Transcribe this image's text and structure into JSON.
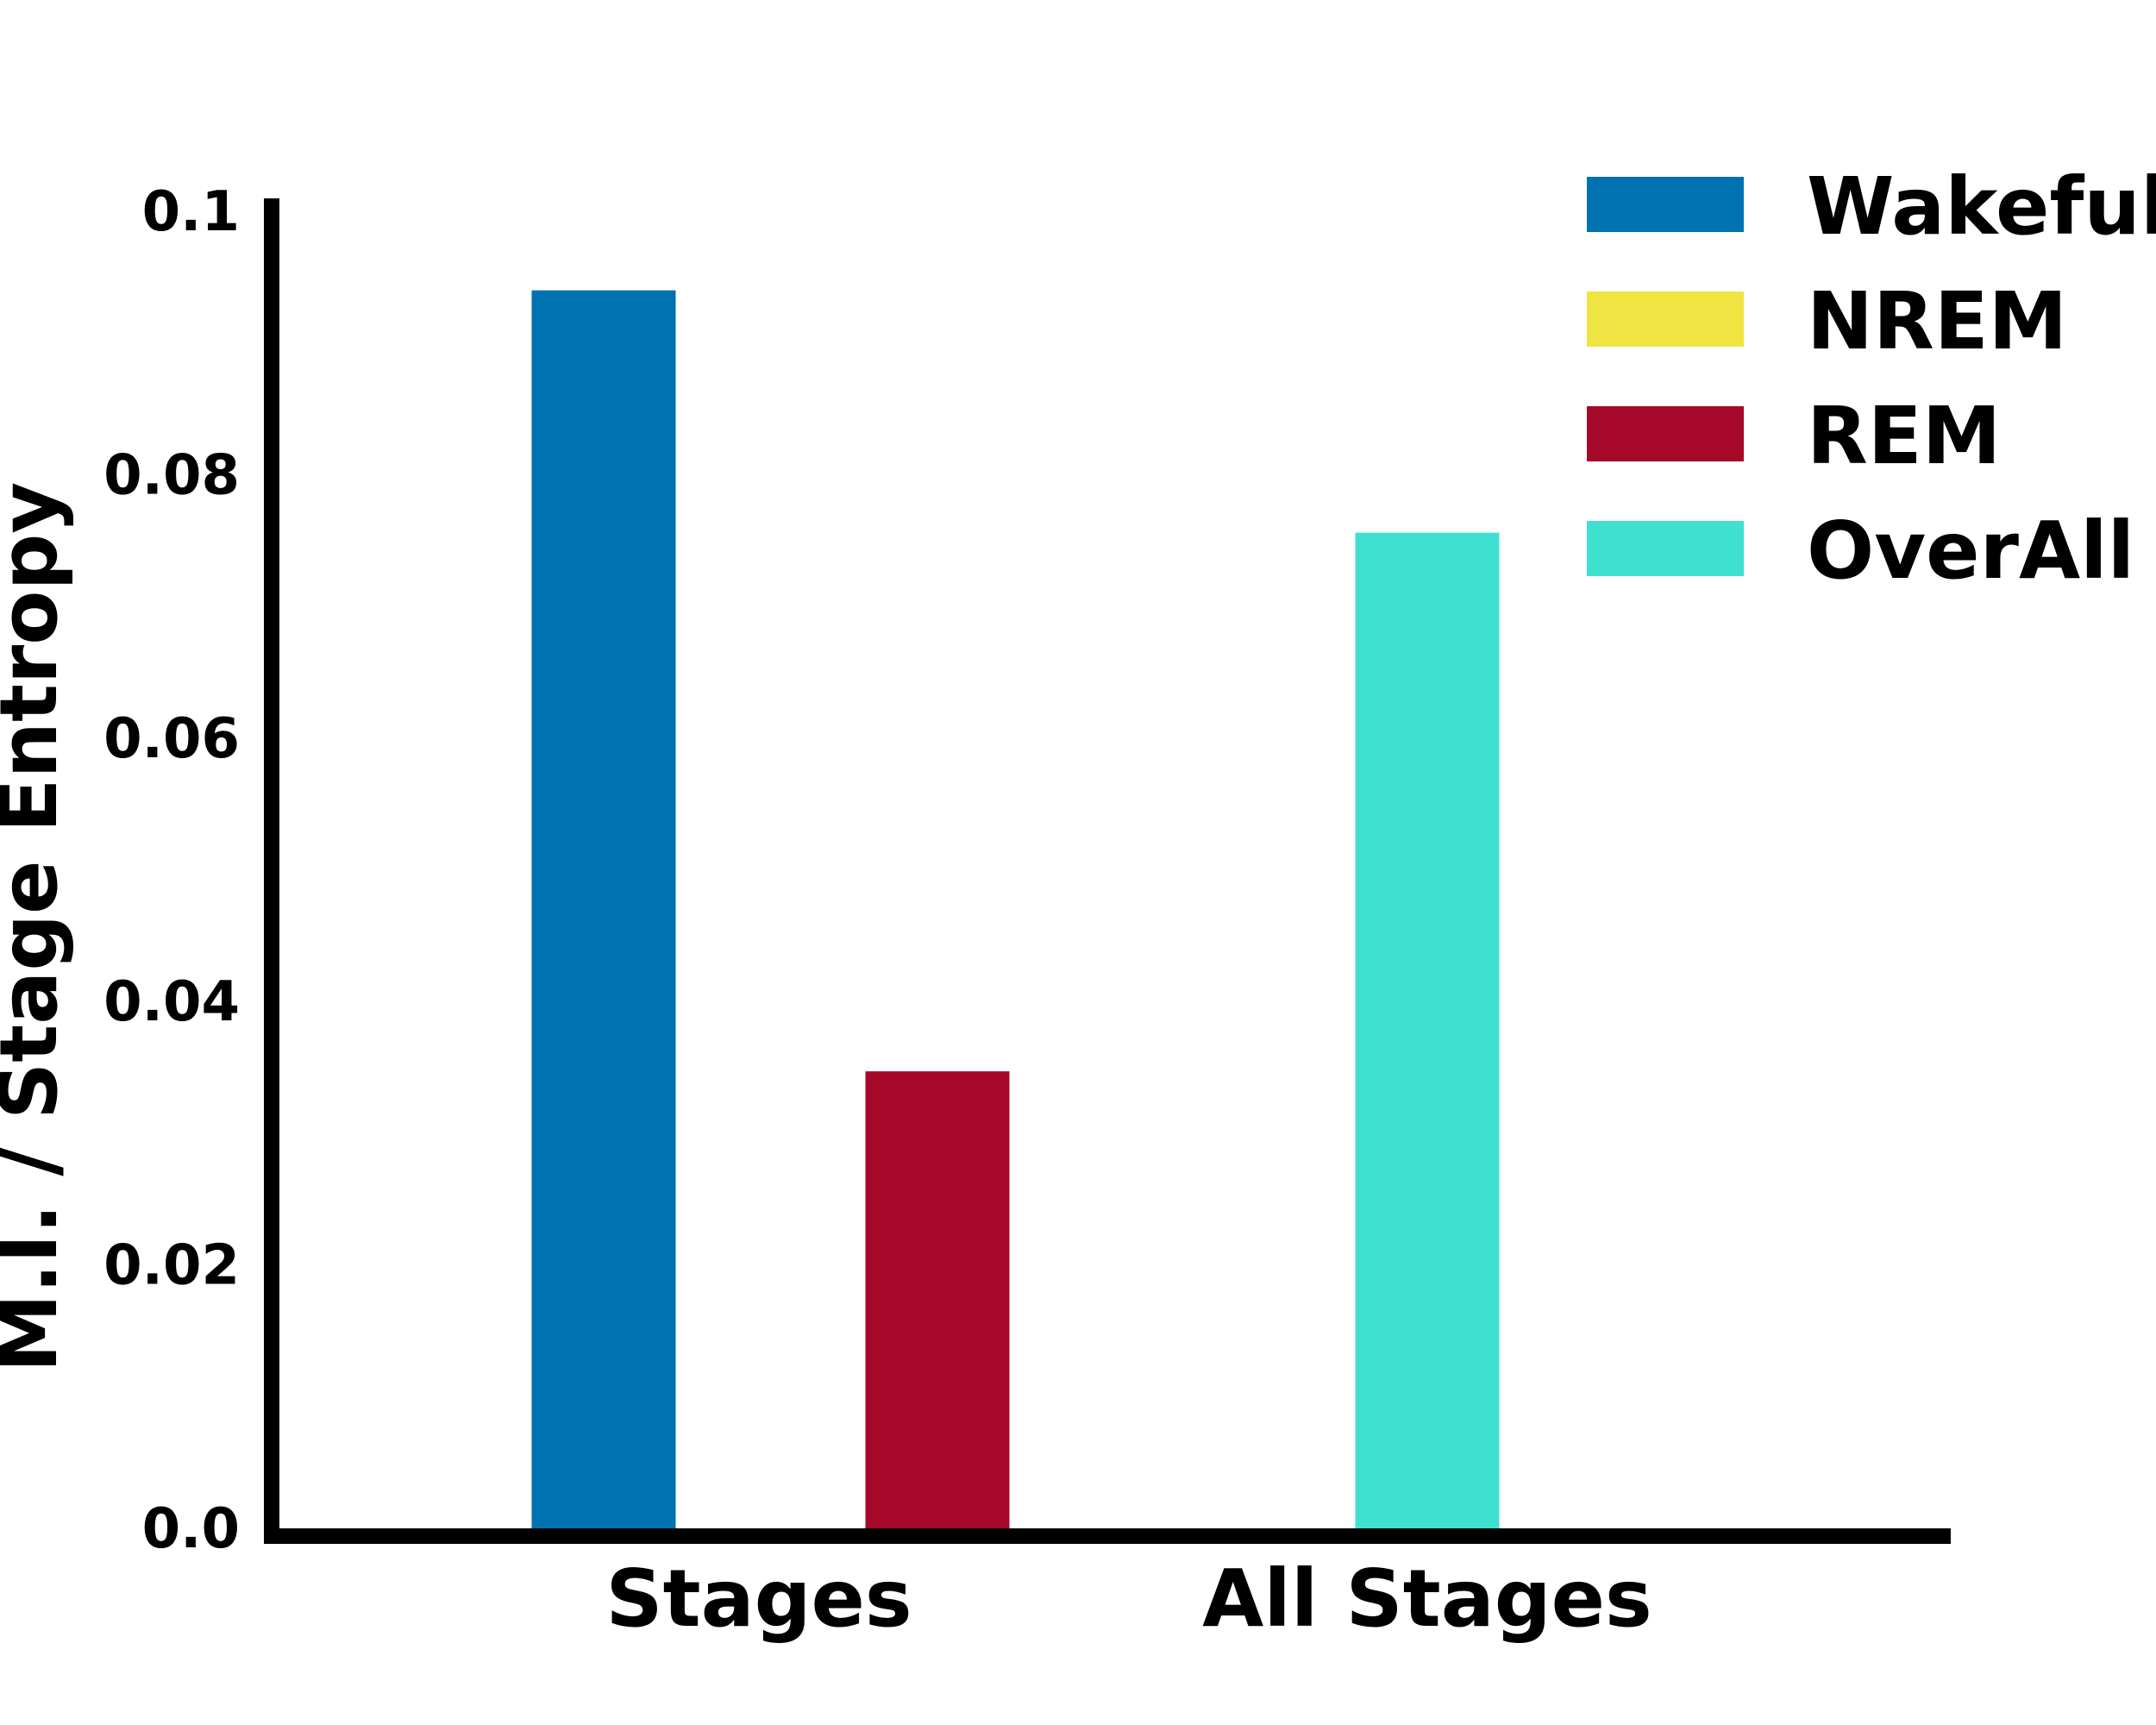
{
  "chart_data": {
    "type": "bar",
    "categories": [
      "Stages",
      "All Stages"
    ],
    "series": [
      {
        "name": "Wakeful",
        "color": "#0072B2",
        "values": [
          0.094,
          null
        ]
      },
      {
        "name": "NREM",
        "color": "#F0E442",
        "values": [
          0.0,
          null
        ]
      },
      {
        "name": "REM",
        "color": "#A50828",
        "values": [
          0.0347,
          null
        ]
      },
      {
        "name": "OverAll",
        "color": "#40E0D0",
        "values": [
          null,
          0.0756
        ]
      }
    ],
    "ylabel": "M.I. / Stage Entropy",
    "xlabel": "",
    "ylim": [
      0,
      0.1
    ],
    "yticks": [
      0.0,
      0.02,
      0.04,
      0.06,
      0.08,
      0.1
    ],
    "ytick_labels": [
      "0.0",
      "0.02",
      "0.04",
      "0.06",
      "0.08",
      "0.1"
    ],
    "legend_position": "top-right"
  }
}
